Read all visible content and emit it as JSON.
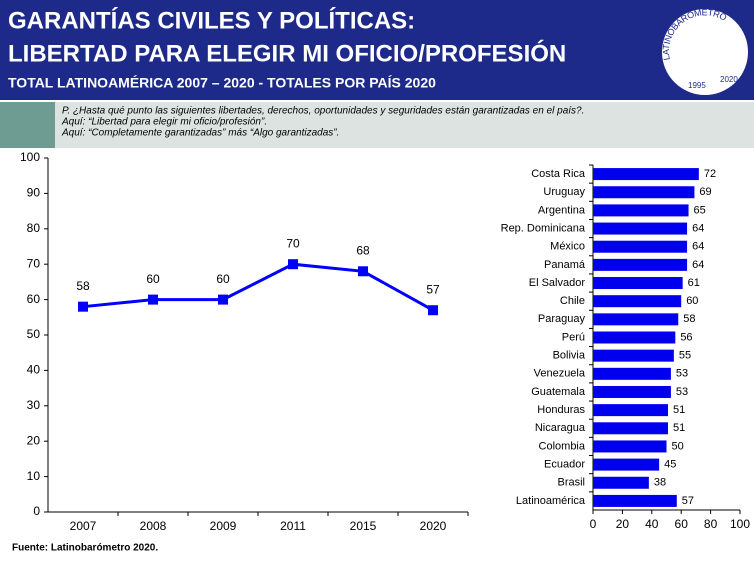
{
  "header": {
    "title": [
      "GARANTÍAS CIVILES Y POLÍTICAS:",
      "LIBERTAD PARA ELEGIR MI OFICIO/PROFESIÓN"
    ],
    "subtitle": "TOTAL LATINOAMÉRICA 2007 – 2020 - TOTALES POR PAÍS 2020"
  },
  "logo": {
    "name": "LATINOBARÓMETRO",
    "years": [
      "1995",
      "2020"
    ],
    "mark": "MR"
  },
  "question": [
    "P. ¿Hasta qué punto las siguientes libertades, derechos, oportunidades y seguridades están garantizadas en el país?.",
    "Aquí: “Libertad para elegir mi oficio/profesión”.",
    "Aquí: “Completamente garantizadas” más “Algo garantizadas”."
  ],
  "source": "Fuente: Latinobarómetro 2020.",
  "chart_data": [
    {
      "type": "line",
      "categories": [
        "2007",
        "2008",
        "2009",
        "2011",
        "2015",
        "2020"
      ],
      "values": [
        58,
        60,
        60,
        70,
        68,
        57
      ],
      "color": "#0000ff",
      "ylim": [
        0,
        100
      ],
      "yticks": [
        0,
        10,
        20,
        30,
        40,
        50,
        60,
        70,
        80,
        90,
        100
      ]
    },
    {
      "type": "bar",
      "orientation": "horizontal",
      "categories": [
        "Costa Rica",
        "Uruguay",
        "Argentina",
        "Rep. Dominicana",
        "México",
        "Panamá",
        "El Salvador",
        "Chile",
        "Paraguay",
        "Perú",
        "Bolivia",
        "Venezuela",
        "Guatemala",
        "Honduras",
        "Nicaragua",
        "Colombia",
        "Ecuador",
        "Brasil",
        "Latinoamérica"
      ],
      "values": [
        72,
        69,
        65,
        64,
        64,
        64,
        61,
        60,
        58,
        56,
        55,
        53,
        53,
        51,
        51,
        50,
        45,
        38,
        57
      ],
      "color": "#0000ee",
      "xlim": [
        0,
        100
      ],
      "xticks": [
        0,
        20,
        40,
        60,
        80,
        100
      ]
    }
  ]
}
